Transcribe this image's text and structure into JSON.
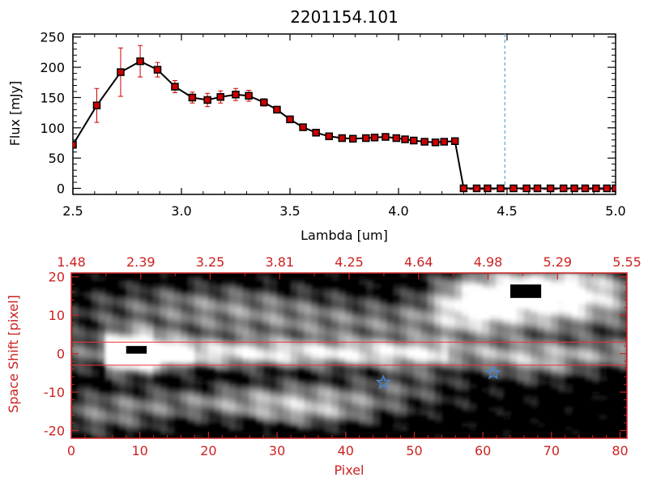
{
  "chart_data": [
    {
      "type": "line",
      "title": "2201154.101",
      "xlabel": "Lambda [um]",
      "ylabel": "Flux [mJy]",
      "xlim": [
        2.5,
        5.0
      ],
      "ylim": [
        -10,
        255
      ],
      "xticks": [
        "2.5",
        "3.0",
        "3.5",
        "4.0",
        "4.5",
        "5.0"
      ],
      "yticks": [
        "0",
        "50",
        "100",
        "150",
        "200",
        "250"
      ],
      "marker_line_x": 4.49,
      "colors": {
        "line": "#000000",
        "marker": "#cc0000",
        "errorbar": "#cc0000",
        "vline": "#55aadd"
      },
      "series": [
        {
          "x": [
            2.5,
            2.61,
            2.72,
            2.81,
            2.89,
            2.97,
            3.05,
            3.12,
            3.18,
            3.25,
            3.31,
            3.38,
            3.44,
            3.5,
            3.56,
            3.62,
            3.68,
            3.74,
            3.79,
            3.85,
            3.89,
            3.94,
            3.99,
            4.03,
            4.07,
            4.12,
            4.17,
            4.21,
            4.26,
            4.3,
            4.36,
            4.41,
            4.47,
            4.53,
            4.59,
            4.64,
            4.7,
            4.76,
            4.81,
            4.86,
            4.91,
            4.96,
            5.0
          ],
          "y": [
            72,
            137,
            192,
            210,
            196,
            168,
            150,
            146,
            151,
            155,
            153,
            142,
            130,
            114,
            101,
            92,
            86,
            83,
            82,
            83,
            84,
            85,
            83,
            81,
            79,
            77,
            76,
            77,
            78,
            0,
            0,
            0,
            0,
            0,
            0,
            0,
            0,
            0,
            0,
            0,
            0,
            0,
            0
          ],
          "err": [
            0,
            28,
            40,
            26,
            12,
            10,
            9,
            11,
            10,
            10,
            9,
            6,
            0,
            0,
            0,
            0,
            0,
            0,
            0,
            0,
            0,
            0,
            0,
            0,
            0,
            0,
            0,
            0,
            0,
            0,
            0,
            0,
            0,
            0,
            0,
            0,
            0,
            0,
            0,
            0,
            0,
            0,
            0
          ]
        }
      ]
    },
    {
      "type": "heatmap",
      "xlabel": "Pixel",
      "ylabel": "Space Shift [pixel]",
      "xlim": [
        0,
        81
      ],
      "ylim": [
        -22,
        21
      ],
      "xticks": [
        "0",
        "10",
        "20",
        "30",
        "40",
        "50",
        "60",
        "70",
        "80"
      ],
      "yticks": [
        "-20",
        "-10",
        "0",
        "10",
        "20"
      ],
      "top_axis_ticks": [
        "1.48",
        "2.39",
        "3.25",
        "3.81",
        "4.25",
        "4.64",
        "4.98",
        "5.29",
        "5.55"
      ],
      "aperture_rows": [
        3,
        -3
      ],
      "star_markers": [
        {
          "x": 45.5,
          "y": -7.5
        },
        {
          "x": 61.5,
          "y": -5
        }
      ],
      "colors": {
        "axis": "#cc2222",
        "aperture": "#ee3333",
        "star": "#4488dd"
      }
    }
  ]
}
